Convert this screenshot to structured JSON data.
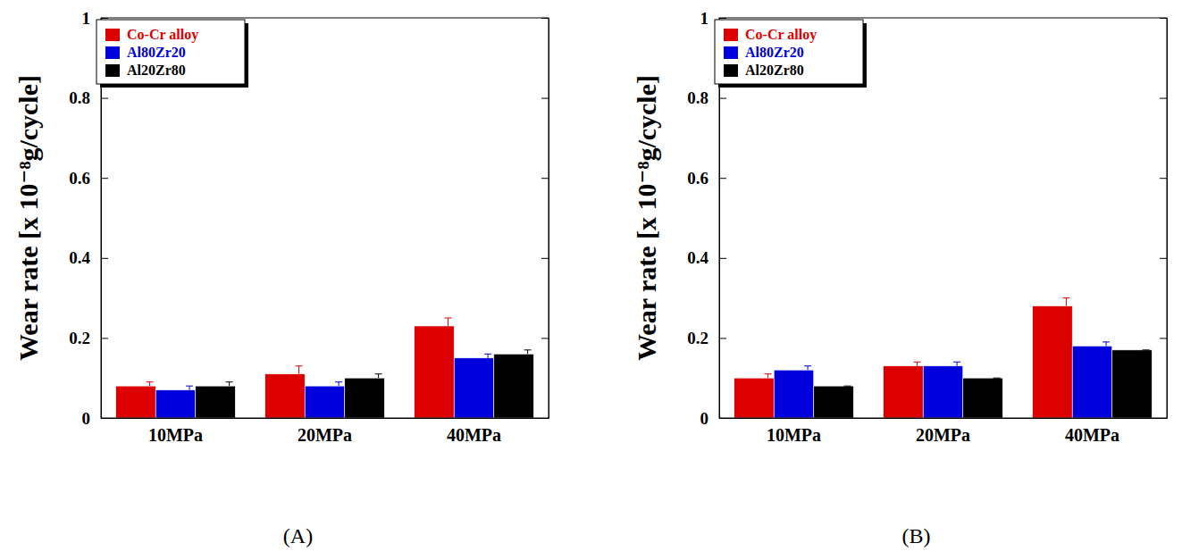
{
  "chart_data": [
    {
      "type": "bar",
      "title": "(A)",
      "y_label": "Wear rate [x 10⁻⁸g/cycle]",
      "categories": [
        "10MPa",
        "20MPa",
        "40MPa"
      ],
      "series": [
        {
          "name": "Co-Cr alloy",
          "color": "#dd0000",
          "values": [
            0.08,
            0.11,
            0.23
          ],
          "errors": [
            0.01,
            0.02,
            0.02
          ]
        },
        {
          "name": "Al80Zr20",
          "color": "#0000dd",
          "values": [
            0.07,
            0.08,
            0.15
          ],
          "errors": [
            0.01,
            0.01,
            0.01
          ]
        },
        {
          "name": "Al20Zr80",
          "color": "#000000",
          "values": [
            0.08,
            0.1,
            0.16
          ],
          "errors": [
            0.01,
            0.01,
            0.01
          ]
        }
      ],
      "ylim": [
        0,
        1
      ],
      "yticks": [
        0,
        0.2,
        0.4,
        0.6,
        0.8,
        1
      ],
      "legend": "upper left"
    },
    {
      "type": "bar",
      "title": "(B)",
      "y_label": "Wear rate [x 10⁻⁸g/cycle]",
      "categories": [
        "10MPa",
        "20MPa",
        "40MPa"
      ],
      "series": [
        {
          "name": "Co-Cr alloy",
          "color": "#dd0000",
          "values": [
            0.1,
            0.13,
            0.28
          ],
          "errors": [
            0.01,
            0.01,
            0.02
          ]
        },
        {
          "name": "Al80Zr20",
          "color": "#0000dd",
          "values": [
            0.12,
            0.13,
            0.18
          ],
          "errors": [
            0.01,
            0.01,
            0.01
          ]
        },
        {
          "name": "Al20Zr80",
          "color": "#000000",
          "values": [
            0.08,
            0.1,
            0.17
          ],
          "errors": [
            0,
            0,
            0
          ]
        }
      ],
      "ylim": [
        0,
        1
      ],
      "yticks": [
        0,
        0.2,
        0.4,
        0.6,
        0.8,
        1
      ],
      "legend": "upper left"
    }
  ]
}
